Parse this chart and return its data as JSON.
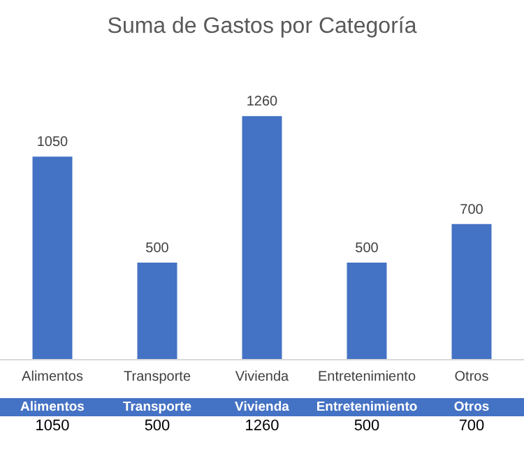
{
  "chart_data": {
    "type": "bar",
    "title": "Suma de Gastos por Categoría",
    "categories": [
      "Alimentos",
      "Transporte",
      "Vivienda",
      "Entretenimiento",
      "Otros"
    ],
    "values": [
      1050,
      500,
      1260,
      500,
      700
    ],
    "color": "#4472c4",
    "annotations": [
      "1050",
      "500",
      "1260",
      "500",
      "700"
    ],
    "data_labels": true,
    "grid": false
  }
}
